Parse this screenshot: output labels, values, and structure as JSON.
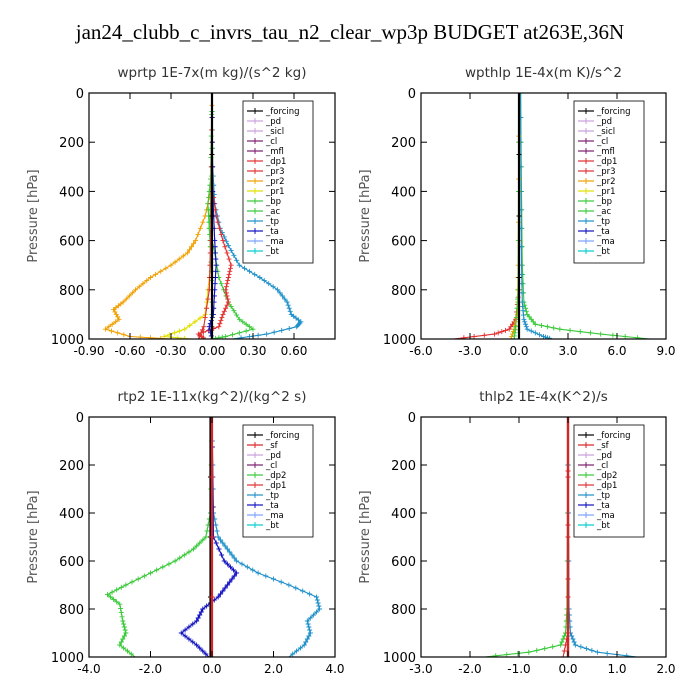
{
  "figure_title": "jan24_clubb_c_invrs_tau_n2_clear_wp3p  BUDGET at263E,36N",
  "series_colors": {
    "_forcing": "#000000",
    "_sf": "#dd2222",
    "_pd": "#c9a0dc",
    "_sicl": "#c9a0dc",
    "_cl": "#7a1e6e",
    "_mfl": "#7a1e6e",
    "_dp1": "#e03030",
    "_dp2": "#39c939",
    "_pr3": "#e03030",
    "_pr2": "#f0a000",
    "_pr1": "#e0e000",
    "_bp": "#39c939",
    "_ac": "#39c939",
    "_tp": "#1e90c8",
    "_ta": "#1010c0",
    "_ma": "#7aa0ff",
    "_bt": "#00cccc"
  },
  "chart_data": [
    {
      "type": "line",
      "title": "wprtp   1E-7x(m kg)/(s^2 kg)",
      "ylabel": "Pressure [hPa]",
      "xlim": [
        -0.9,
        0.9
      ],
      "ylim": [
        1000,
        0
      ],
      "xticks": [
        -0.9,
        -0.6,
        -0.3,
        0.0,
        0.3,
        0.6
      ],
      "xtick_labels": [
        "-0.90",
        "-0.60",
        "-0.30",
        "0.00",
        "0.30",
        "0.60"
      ],
      "yticks": [
        0,
        200,
        400,
        600,
        800,
        1000
      ],
      "ytick_labels": [
        "0",
        "200",
        "400",
        "600",
        "800",
        "1000"
      ],
      "legend_position": "top-right",
      "legend": [
        "_forcing",
        "_pd",
        "_sicl",
        "_cl",
        "_mfl",
        "_dp1",
        "_pr3",
        "_pr2",
        "_pr1",
        "_bp",
        "_ac",
        "_tp",
        "_ta",
        "_ma",
        "_bt"
      ],
      "series": [
        {
          "name": "_pr2",
          "y": [
            0,
            200,
            400,
            500,
            600,
            650,
            700,
            750,
            800,
            850,
            880,
            920,
            960,
            990,
            1000
          ],
          "x": [
            0,
            0,
            -0.01,
            -0.05,
            -0.12,
            -0.18,
            -0.3,
            -0.45,
            -0.56,
            -0.65,
            -0.72,
            -0.68,
            -0.78,
            -0.6,
            -0.3
          ]
        },
        {
          "name": "_pr1",
          "y": [
            0,
            400,
            700,
            900,
            960,
            990,
            1000
          ],
          "x": [
            0,
            0,
            -0.01,
            -0.05,
            -0.2,
            -0.35,
            -0.15
          ]
        },
        {
          "name": "_tp",
          "y": [
            0,
            300,
            450,
            550,
            620,
            700,
            750,
            800,
            850,
            900,
            930,
            950,
            980,
            1000
          ],
          "x": [
            0,
            0.005,
            0.02,
            0.06,
            0.12,
            0.2,
            0.35,
            0.48,
            0.55,
            0.58,
            0.65,
            0.62,
            0.4,
            0.15
          ]
        },
        {
          "name": "_bp",
          "y": [
            0,
            300,
            450,
            550,
            650,
            750,
            850,
            920,
            960,
            990,
            1000
          ],
          "x": [
            0,
            0,
            -0.01,
            -0.02,
            0.02,
            0.05,
            0.12,
            0.2,
            0.3,
            0.1,
            0.0
          ]
        },
        {
          "name": "_ac",
          "y": [
            0,
            350,
            450,
            550,
            650,
            800,
            1000
          ],
          "x": [
            0,
            -0.01,
            -0.03,
            -0.02,
            -0.01,
            0.0,
            0.0
          ]
        },
        {
          "name": "_dp1",
          "y": [
            0,
            400,
            500,
            600,
            700,
            750,
            800,
            850,
            900,
            950,
            980,
            1000
          ],
          "x": [
            0,
            0.005,
            0.03,
            0.08,
            0.14,
            0.12,
            0.1,
            0.12,
            0.08,
            0.05,
            -0.1,
            -0.05
          ]
        },
        {
          "name": "_pr3",
          "y": [
            0,
            600,
            800,
            950,
            1000
          ],
          "x": [
            0,
            -0.01,
            -0.02,
            -0.06,
            -0.1
          ]
        },
        {
          "name": "_ta",
          "y": [
            0,
            400,
            600,
            700,
            800,
            900,
            950,
            1000
          ],
          "x": [
            0,
            0.005,
            0.02,
            0.03,
            0.02,
            0.01,
            -0.02,
            0.0
          ]
        },
        {
          "name": "_forcing",
          "y": [
            0,
            1000
          ],
          "x": [
            0,
            0
          ]
        }
      ]
    },
    {
      "type": "line",
      "title": "wpthlp   1E-4x(m K)/s^2",
      "ylabel": "Pressure [hPa]",
      "xlim": [
        -6.0,
        9.0
      ],
      "ylim": [
        1000,
        0
      ],
      "xticks": [
        -6.0,
        -3.0,
        0.0,
        3.0,
        6.0,
        9.0
      ],
      "xtick_labels": [
        "-6.0",
        "-3.0",
        "0.0",
        "3.0",
        "6.0",
        "9.0"
      ],
      "yticks": [
        0,
        200,
        400,
        600,
        800,
        1000
      ],
      "ytick_labels": [
        "0",
        "200",
        "400",
        "600",
        "800",
        "1000"
      ],
      "legend_position": "top-right",
      "legend": [
        "_forcing",
        "_pd",
        "_sicl",
        "_cl",
        "_mfl",
        "_dp1",
        "_pr3",
        "_pr2",
        "_pr1",
        "_bp",
        "_ac",
        "_tp",
        "_ta",
        "_ma",
        "_bt"
      ],
      "series": [
        {
          "name": "_bp",
          "y": [
            0,
            400,
            700,
            850,
            900,
            940,
            960,
            980,
            1000
          ],
          "x": [
            0.1,
            0.15,
            0.2,
            0.3,
            0.5,
            1.0,
            2.5,
            5.0,
            8.0
          ]
        },
        {
          "name": "_tp",
          "y": [
            0,
            400,
            700,
            850,
            920,
            960,
            990,
            1000
          ],
          "x": [
            0.1,
            0.12,
            0.15,
            0.2,
            0.3,
            0.5,
            1.5,
            2.0
          ]
        },
        {
          "name": "_dp1",
          "y": [
            0,
            800,
            920,
            960,
            980,
            1000
          ],
          "x": [
            0,
            0,
            -0.2,
            -0.6,
            -1.5,
            -4.0
          ]
        },
        {
          "name": "_pr2",
          "y": [
            0,
            700,
            900,
            960,
            1000
          ],
          "x": [
            0,
            -0.05,
            -0.1,
            -0.3,
            -0.5
          ]
        },
        {
          "name": "_ac",
          "y": [
            0,
            800,
            950,
            1000
          ],
          "x": [
            0,
            -0.05,
            -0.2,
            -0.3
          ]
        },
        {
          "name": "_forcing",
          "y": [
            0,
            1000
          ],
          "x": [
            0,
            0
          ]
        }
      ]
    },
    {
      "type": "line",
      "title": "rtp2   1E-11x(kg^2)/(kg^2 s)",
      "ylabel": "Pressure [hPa]",
      "xlim": [
        -4.0,
        4.0
      ],
      "ylim": [
        1000,
        0
      ],
      "xticks": [
        -4.0,
        -2.0,
        0.0,
        2.0,
        4.0
      ],
      "xtick_labels": [
        "-4.0",
        "-2.0",
        "0.0",
        "2.0",
        "4.0"
      ],
      "yticks": [
        0,
        200,
        400,
        600,
        800,
        1000
      ],
      "ytick_labels": [
        "0",
        "200",
        "400",
        "600",
        "800",
        "1000"
      ],
      "legend_position": "top-right",
      "legend": [
        "_forcing",
        "_sf",
        "_pd",
        "_cl",
        "_dp2",
        "_dp1",
        "_tp",
        "_ta",
        "_ma",
        "_bt"
      ],
      "series": [
        {
          "name": "_dp2",
          "y": [
            0,
            400,
            500,
            550,
            600,
            650,
            700,
            740,
            780,
            850,
            900,
            950,
            1000
          ],
          "x": [
            0,
            -0.05,
            -0.2,
            -0.6,
            -1.2,
            -2.0,
            -2.8,
            -3.4,
            -3.0,
            -2.9,
            -2.8,
            -3.0,
            -2.5
          ]
        },
        {
          "name": "_tp",
          "y": [
            0,
            400,
            500,
            550,
            600,
            650,
            700,
            750,
            800,
            850,
            900,
            950,
            1000
          ],
          "x": [
            0,
            0.05,
            0.2,
            0.5,
            0.8,
            1.5,
            2.5,
            3.4,
            3.5,
            3.1,
            3.2,
            3.0,
            2.5
          ]
        },
        {
          "name": "_ta",
          "y": [
            0,
            500,
            600,
            650,
            700,
            750,
            800,
            850,
            900,
            950,
            1000
          ],
          "x": [
            0,
            0.05,
            0.4,
            0.8,
            0.5,
            0.2,
            -0.3,
            -0.5,
            -1.0,
            -0.5,
            -0.1
          ]
        },
        {
          "name": "_dp1",
          "y": [
            0,
            1000
          ],
          "x": [
            0,
            0
          ]
        },
        {
          "name": "_forcing",
          "y": [
            0,
            1000
          ],
          "x": [
            -0.05,
            -0.05
          ]
        },
        {
          "name": "_sf",
          "y": [
            0,
            1000
          ],
          "x": [
            0,
            0
          ]
        }
      ]
    },
    {
      "type": "line",
      "title": "thlp2   1E-4x(K^2)/s",
      "ylabel": "Pressure [hPa]",
      "xlim": [
        -3.0,
        2.0
      ],
      "ylim": [
        1000,
        0
      ],
      "xticks": [
        -3.0,
        -2.0,
        -1.0,
        0.0,
        1.0,
        2.0
      ],
      "xtick_labels": [
        "-3.0",
        "-2.0",
        "-1.0",
        "0.0",
        "1.0",
        "2.0"
      ],
      "yticks": [
        0,
        200,
        400,
        600,
        800,
        1000
      ],
      "ytick_labels": [
        "0",
        "200",
        "400",
        "600",
        "800",
        "1000"
      ],
      "legend_position": "top-right",
      "legend": [
        "_forcing",
        "_sf",
        "_pd",
        "_cl",
        "_dp2",
        "_dp1",
        "_tp",
        "_ta",
        "_ma",
        "_bt"
      ],
      "series": [
        {
          "name": "_dp2",
          "y": [
            0,
            800,
            900,
            950,
            980,
            1000
          ],
          "x": [
            0,
            -0.02,
            -0.05,
            -0.15,
            -0.8,
            -1.7
          ]
        },
        {
          "name": "_tp",
          "y": [
            0,
            800,
            900,
            950,
            980,
            1000
          ],
          "x": [
            0,
            0.02,
            0.05,
            0.15,
            0.6,
            1.4
          ]
        },
        {
          "name": "_dp1",
          "y": [
            0,
            900,
            1000
          ],
          "x": [
            0,
            0,
            -0.1
          ]
        },
        {
          "name": "_forcing",
          "y": [
            0,
            1000
          ],
          "x": [
            0,
            0
          ]
        },
        {
          "name": "_sf",
          "y": [
            0,
            1000
          ],
          "x": [
            0,
            0
          ]
        }
      ]
    }
  ]
}
